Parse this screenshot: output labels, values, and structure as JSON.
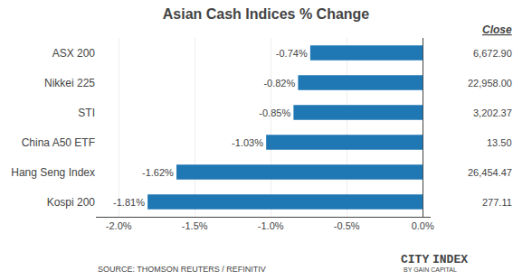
{
  "chart_data": {
    "type": "bar",
    "orientation": "horizontal",
    "title": "Asian Cash Indices % Change",
    "categories": [
      "Kospi 200",
      "Hang Seng Index",
      "China A50 ETF",
      "STI",
      "Nikkei 225",
      "ASX 200"
    ],
    "values": [
      -1.81,
      -1.62,
      -1.03,
      -0.85,
      -0.82,
      -0.74
    ],
    "value_labels": [
      "-1.81%",
      "-1.62%",
      "-1.03%",
      "-0.85%",
      "-0.82%",
      "-0.74%"
    ],
    "data_labels": true,
    "close_values": [
      "277.11",
      "26,454.47",
      "13.50",
      "3,202.37",
      "22,958.00",
      "6,672.90"
    ],
    "xlim": [
      -2.15,
      0.05
    ],
    "xticks": [
      {
        "value": -2.0,
        "label": "-2.0%"
      },
      {
        "value": -1.5,
        "label": "-1.5%"
      },
      {
        "value": -1.0,
        "label": "-1.0%"
      },
      {
        "value": -0.5,
        "label": "-0.5%"
      },
      {
        "value": 0.0,
        "label": "0.0%"
      }
    ],
    "grid": true,
    "annotations": [
      "Close",
      "SOURCE: THOMSON REUTERS / REFINITIV",
      "CITY",
      "INDEX",
      "BY GAIN CAPITAL"
    ]
  }
}
